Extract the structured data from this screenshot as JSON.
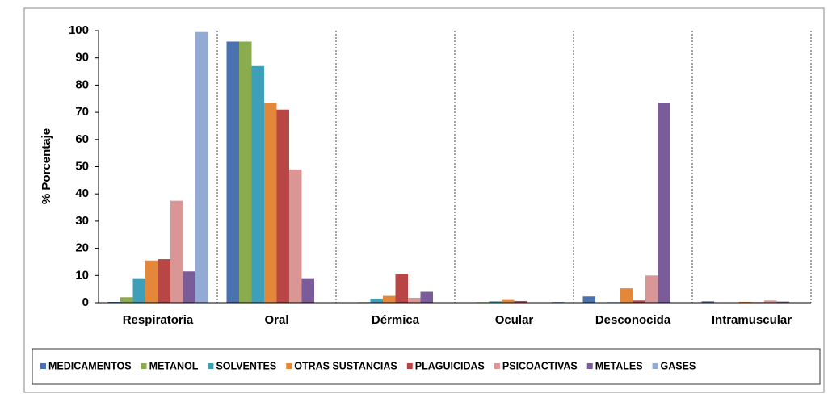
{
  "chart_data": {
    "type": "bar",
    "y_label": "% Porcentaje",
    "categories": [
      "Respiratoria",
      "Oral",
      "Dérmica",
      "Ocular",
      "Desconocida",
      "Intramuscular"
    ],
    "series": [
      {
        "name": "MEDICAMENTOS",
        "color": "#4a72b0",
        "values": [
          0.3,
          96,
          0,
          0,
          2.3,
          0.5
        ]
      },
      {
        "name": "METANOL",
        "color": "#8aab4e",
        "values": [
          2,
          96,
          0.2,
          0.2,
          0.1,
          0.1
        ]
      },
      {
        "name": "SOLVENTES",
        "color": "#3e9fb8",
        "values": [
          9,
          87,
          1.5,
          0.5,
          0.2,
          0
        ]
      },
      {
        "name": "OTRAS SUSTANCIAS",
        "color": "#e5873a",
        "values": [
          15.5,
          73.5,
          2.5,
          1.3,
          5.3,
          0.3
        ]
      },
      {
        "name": "PLAGUICIDAS",
        "color": "#b74645",
        "values": [
          16,
          71,
          10.5,
          0.6,
          0.8,
          0.2
        ]
      },
      {
        "name": "PSICOACTIVAS",
        "color": "#d99695",
        "values": [
          37.5,
          49,
          1.8,
          0,
          10,
          0.8
        ]
      },
      {
        "name": "METALES",
        "color": "#7a5c9a",
        "values": [
          11.5,
          9,
          4,
          0,
          73.5,
          0.4
        ]
      },
      {
        "name": "GASES",
        "color": "#93aad4",
        "values": [
          99.5,
          0,
          0,
          0.3,
          0,
          0
        ]
      }
    ],
    "ylim": [
      0,
      100
    ],
    "yticks": [
      0,
      10,
      20,
      30,
      40,
      50,
      60,
      70,
      80,
      90,
      100
    ],
    "legend": "bottom"
  }
}
